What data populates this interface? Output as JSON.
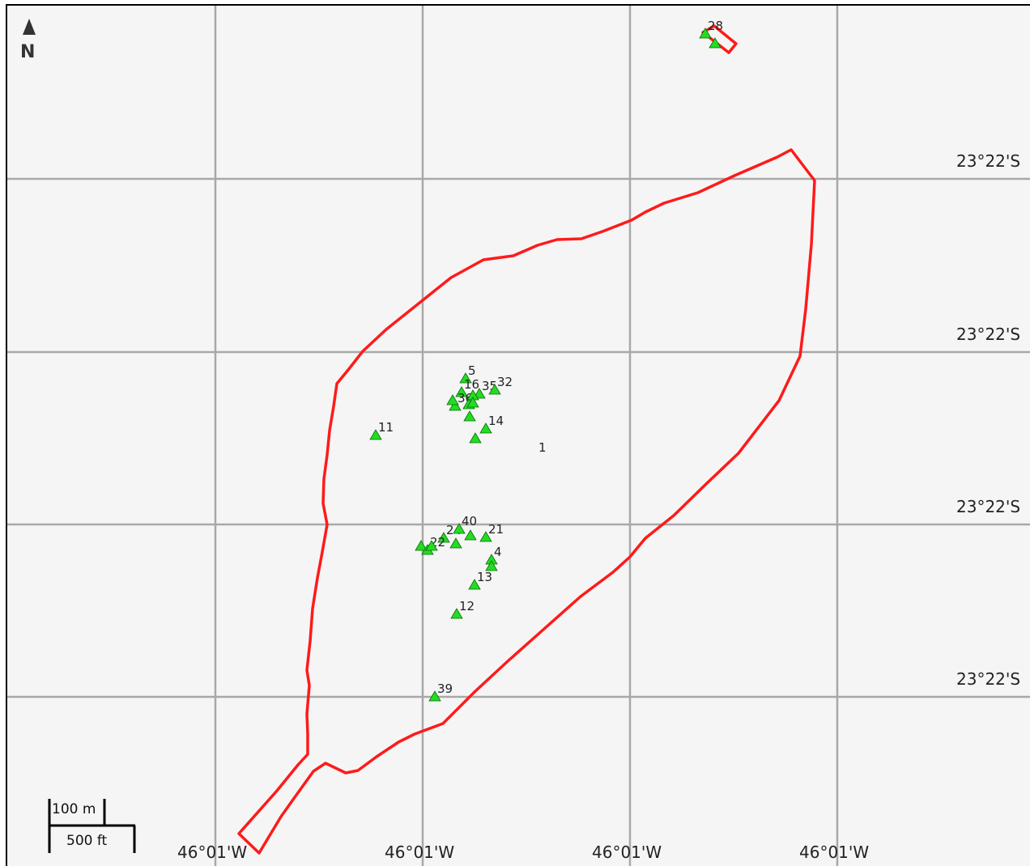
{
  "map": {
    "north_label": "N",
    "scale": {
      "metric": "100 m",
      "imperial": "500 ft"
    },
    "latitude_labels": [
      "23°22'S",
      "23°22'S",
      "23°22'S",
      "23°22'S"
    ],
    "longitude_labels": [
      "46°01'W",
      "46°01'W",
      "46°01'W",
      "46°01'W"
    ],
    "boundary_color": "#ff1a1a",
    "marker_color": "#22dd22",
    "markers": [
      {
        "label": "28"
      },
      {
        "label": ""
      },
      {
        "label": "5"
      },
      {
        "label": "16"
      },
      {
        "label": "35"
      },
      {
        "label": "32"
      },
      {
        "label": "36"
      },
      {
        "label": ""
      },
      {
        "label": ""
      },
      {
        "label": ""
      },
      {
        "label": ""
      },
      {
        "label": ""
      },
      {
        "label": "14"
      },
      {
        "label": ""
      },
      {
        "label": "11"
      },
      {
        "label": "24"
      },
      {
        "label": "40"
      },
      {
        "label": ""
      },
      {
        "label": ""
      },
      {
        "label": "21"
      },
      {
        "label": ""
      },
      {
        "label": "22"
      },
      {
        "label": ""
      },
      {
        "label": "4"
      },
      {
        "label": ""
      },
      {
        "label": "13"
      },
      {
        "label": "12"
      },
      {
        "label": "39"
      }
    ],
    "standalone_labels": [
      "1"
    ]
  }
}
